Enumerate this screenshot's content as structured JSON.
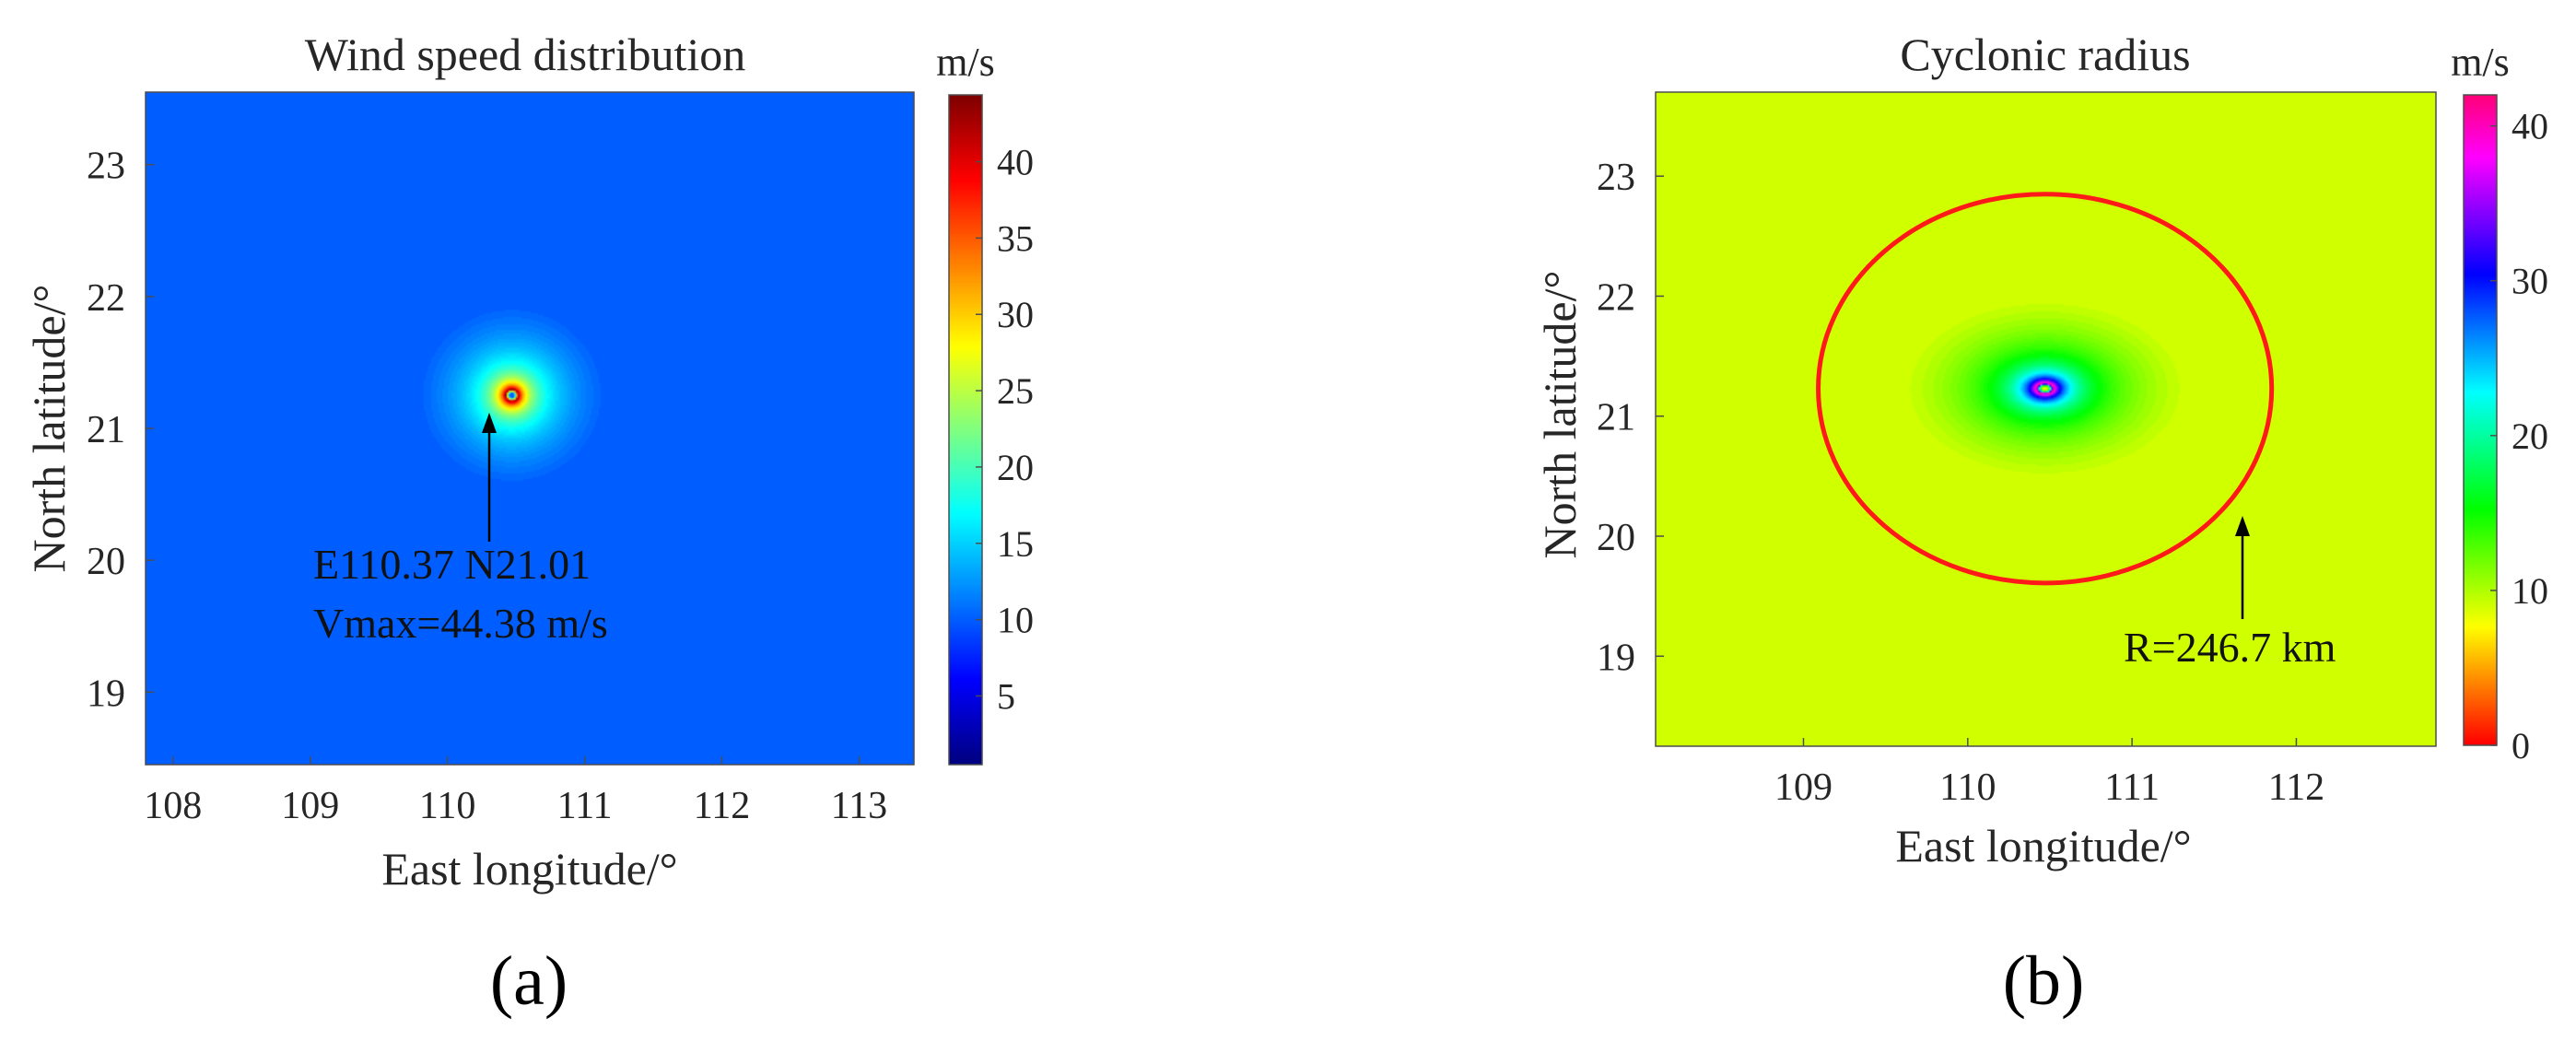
{
  "figure": {
    "panels": [
      {
        "label": "(a)"
      },
      {
        "label": "(b)"
      }
    ]
  },
  "chart_data": [
    {
      "type": "heatmap",
      "title": "Wind speed distribution",
      "xlabel": "East longitude/°",
      "ylabel": "North latitude/°",
      "xlim": [
        107.8,
        113.4
      ],
      "ylim": [
        18.45,
        23.55
      ],
      "xticks": [
        108,
        109,
        110,
        111,
        112,
        113
      ],
      "yticks": [
        19,
        20,
        21,
        22,
        23
      ],
      "colorbar": {
        "unit": "m/s",
        "range": [
          0.5,
          44.38
        ],
        "ticks": [
          5,
          10,
          15,
          20,
          25,
          30,
          35,
          40
        ],
        "colormap": "jet"
      },
      "center": {
        "lon": 110.47,
        "lat": 21.25
      },
      "value_at_edge": 11,
      "annotation": {
        "lines": [
          "E110.37 N21.01",
          "Vmax=44.38 m/s"
        ]
      }
    },
    {
      "type": "heatmap",
      "title": "Cyclonic radius",
      "xlabel": "East longitude/°",
      "ylabel": "North latitude/°",
      "xlim": [
        108.1,
        112.85
      ],
      "ylim": [
        18.25,
        23.7
      ],
      "xticks": [
        109,
        110,
        111,
        112
      ],
      "yticks": [
        19,
        20,
        21,
        22,
        23
      ],
      "colorbar": {
        "unit": "m/s",
        "range": [
          0,
          42
        ],
        "ticks": [
          0,
          10,
          20,
          30,
          40
        ],
        "colormap": "hsv"
      },
      "center": {
        "lon": 110.47,
        "lat": 21.23
      },
      "value_at_edge": 10,
      "radius_contour": {
        "lon_radius": 1.38,
        "lat_radius": 1.62,
        "color": "#ff1a1a"
      },
      "annotation": {
        "lines": [
          "R=246.7 km"
        ]
      }
    }
  ]
}
